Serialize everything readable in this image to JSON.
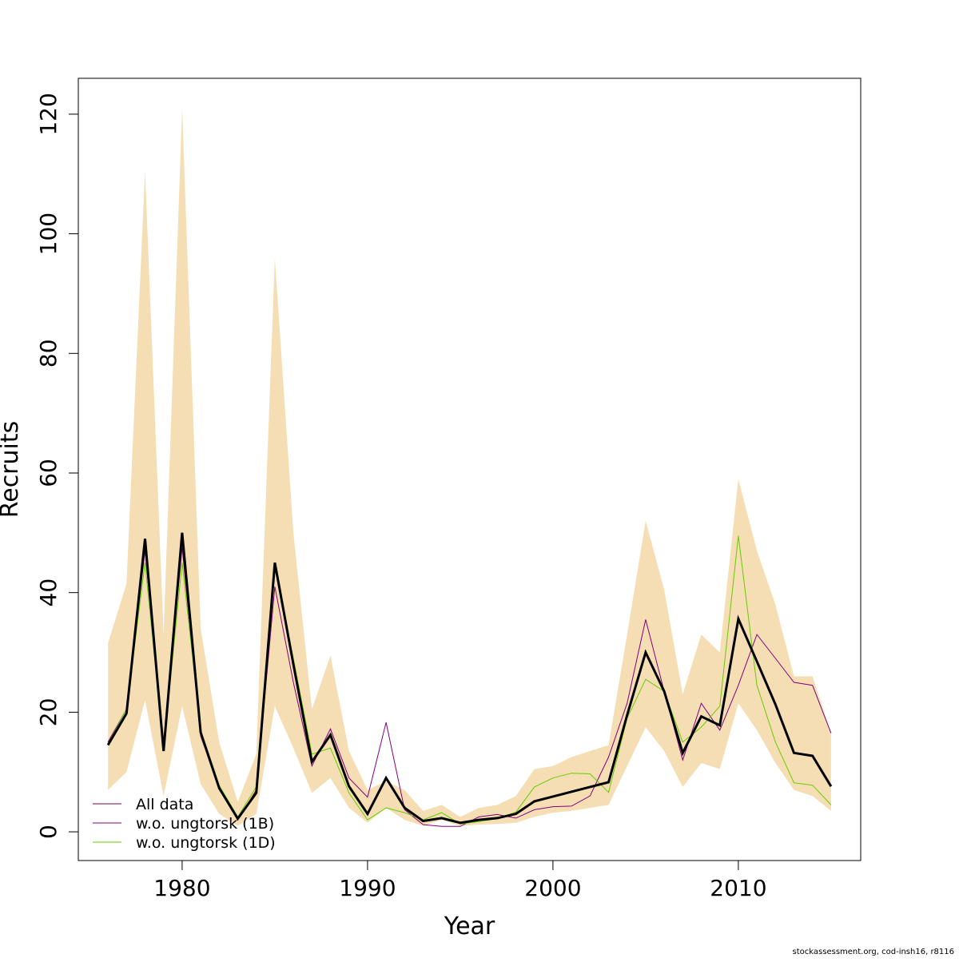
{
  "chart_data": {
    "type": "line",
    "xlabel": "Year",
    "ylabel": "Recruits",
    "xlim": [
      1974.4,
      2016.6
    ],
    "ylim": [
      -4.8,
      126
    ],
    "xticks": [
      1980,
      1990,
      2000,
      2010
    ],
    "xtick_labels": [
      "1980",
      "1990",
      "2000",
      "2010"
    ],
    "yticks": [
      0,
      20,
      40,
      60,
      80,
      100,
      120
    ],
    "ytick_labels": [
      "0",
      "20",
      "40",
      "60",
      "80",
      "100",
      "120"
    ],
    "grid": false,
    "legend_position": "bottom-left",
    "x": [
      1976,
      1977,
      1978,
      1979,
      1980,
      1981,
      1982,
      1983,
      1984,
      1985,
      1986,
      1987,
      1988,
      1989,
      1990,
      1991,
      1992,
      1993,
      1994,
      1995,
      1996,
      1997,
      1998,
      1999,
      2000,
      2001,
      2002,
      2003,
      2004,
      2005,
      2006,
      2007,
      2008,
      2009,
      2010,
      2011,
      2012,
      2013,
      2014,
      2015
    ],
    "confidence_band": {
      "color": "#F5DEB3",
      "lower": [
        7,
        10,
        22,
        6,
        21,
        8,
        3,
        1,
        3,
        21,
        14,
        6.5,
        9,
        4,
        1.5,
        4,
        2,
        1,
        2,
        1,
        1.2,
        1.3,
        1.5,
        2.5,
        3.2,
        3.5,
        4,
        4.5,
        11,
        17.5,
        13.5,
        7.5,
        11.5,
        10.5,
        21.5,
        17,
        11.5,
        7,
        6,
        3.5
      ],
      "upper": [
        31.5,
        41.5,
        110.5,
        33,
        121,
        34,
        15,
        5,
        13,
        96,
        50,
        20.5,
        29.5,
        13.5,
        7,
        8.5,
        7,
        3.5,
        4.5,
        2.5,
        4,
        4.5,
        6,
        10.5,
        11,
        12.5,
        13.5,
        14.5,
        33,
        52,
        40.5,
        23,
        33,
        30,
        59,
        47,
        38,
        26,
        26,
        16.5
      ]
    },
    "series": [
      {
        "name": "All data",
        "color": "#000000",
        "style": "thick",
        "values": [
          14.5,
          19.8,
          49,
          13.5,
          50,
          16.6,
          7.3,
          2.2,
          6.5,
          45,
          28,
          11.7,
          16.2,
          7.6,
          3,
          9,
          4,
          1.8,
          2.3,
          1.5,
          2,
          2.3,
          3,
          5.1,
          5.9,
          6.7,
          7.5,
          8.3,
          19.5,
          30,
          23.5,
          13.2,
          19.3,
          17.8,
          35.6,
          28.5,
          21.3,
          13.2,
          12.7,
          7.6
        ]
      },
      {
        "name": "w.o. ungtorsk (1B)",
        "color": "#800080",
        "style": "thin",
        "values": [
          15,
          20.5,
          47,
          15,
          47.5,
          16,
          7.3,
          2,
          7,
          41,
          25,
          11,
          17.2,
          9,
          5.8,
          18.3,
          3.7,
          1.2,
          0.9,
          0.9,
          2.5,
          2.9,
          2.3,
          3.7,
          4.2,
          4.3,
          6,
          12.5,
          21.5,
          35.5,
          23.5,
          12,
          21.5,
          17,
          24.5,
          33,
          29,
          25,
          24.5,
          16.5
        ]
      },
      {
        "name": "w.o. ungtorsk (1D)",
        "color": "#66CC00",
        "style": "thin",
        "values": [
          14.7,
          20.5,
          45,
          14,
          45,
          17,
          7.8,
          2.5,
          7.5,
          44,
          29,
          13,
          14,
          6.5,
          2,
          4,
          3.2,
          2,
          3.2,
          1.3,
          1.7,
          2.2,
          3.3,
          7.5,
          9,
          9.8,
          9.7,
          6.6,
          19,
          25.5,
          23.5,
          15,
          17.5,
          21,
          49.5,
          24.5,
          15,
          8.2,
          7.8,
          4.5
        ]
      }
    ]
  },
  "footer": {
    "credit": "stockassessment.org, cod-insh16, r8116"
  }
}
